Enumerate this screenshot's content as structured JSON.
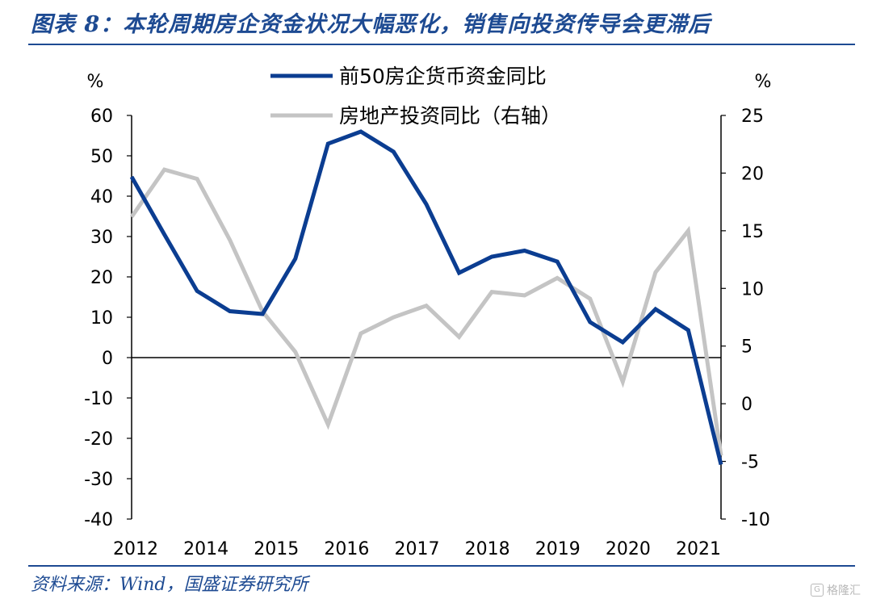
{
  "figure_title": "图表 8：本轮周期房企资金状况大幅恶化，销售向投资传导会更滞后",
  "source_note": "资料来源：Wind，国盛证券研究所",
  "watermark": "格隆汇",
  "watermark_logo_glyph": "G",
  "colors": {
    "title": "#1d4a92",
    "series1": "#0b3d91",
    "series2": "#c4c4c4",
    "axis": "#000000"
  },
  "chart_data": {
    "type": "line",
    "title": "",
    "xlabel": "",
    "y_left_unit": "%",
    "y_right_unit": "%",
    "y_left_lim": [
      -40,
      60
    ],
    "y_right_lim": [
      -10,
      25
    ],
    "y_left_ticks": [
      "60",
      "50",
      "40",
      "30",
      "20",
      "10",
      "0",
      "-10",
      "-20",
      "-30",
      "-40"
    ],
    "y_right_ticks": [
      "25",
      "20",
      "15",
      "10",
      "5",
      "0",
      "-5",
      "-10"
    ],
    "x_tick_labels": [
      "2012",
      "2014",
      "2015",
      "2016",
      "2017",
      "2018",
      "2019",
      "2020",
      "2021"
    ],
    "grid": false,
    "legend_position": "top-center",
    "series": [
      {
        "name": "前50房企货币资金同比",
        "axis": "left",
        "values": [
          44.8,
          30.5,
          16.5,
          11.5,
          10.8,
          24.5,
          53,
          56,
          51,
          38,
          21,
          25,
          26.5,
          23.8,
          8.8,
          3.8,
          12,
          6.8,
          -26.5
        ]
      },
      {
        "name": "房地产投资同比（右轴）",
        "axis": "right",
        "values": [
          16.2,
          20.3,
          19.5,
          14.2,
          8,
          4.5,
          -1.8,
          6.1,
          7.5,
          8.5,
          5.8,
          9.7,
          9.4,
          10.9,
          9.1,
          1.9,
          11.4,
          15,
          -4.5
        ]
      }
    ]
  }
}
